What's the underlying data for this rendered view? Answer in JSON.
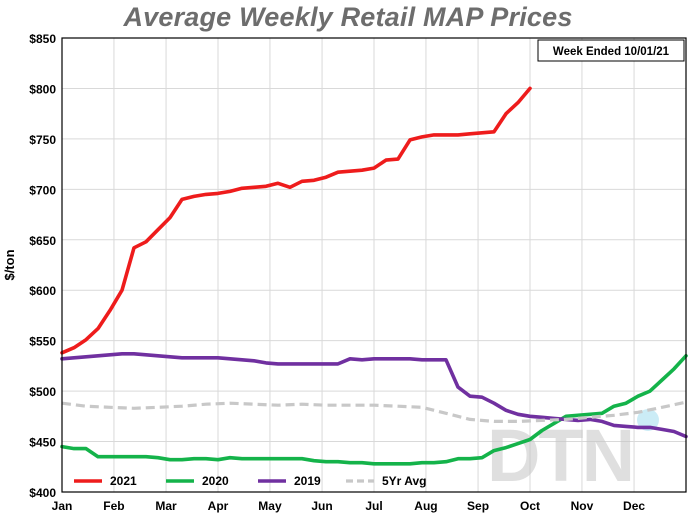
{
  "chart_data": {
    "type": "line",
    "title": "Average Weekly Retail MAP Prices",
    "ylabel": "$/ton",
    "xlabel": "",
    "annotation": "Week Ended 10/01/21",
    "watermark": "DTN",
    "xlim": [
      0,
      52
    ],
    "ylim": [
      400,
      850
    ],
    "y_ticks": [
      400,
      450,
      500,
      550,
      600,
      650,
      700,
      750,
      800,
      850
    ],
    "y_tick_labels": [
      "$400",
      "$450",
      "$500",
      "$550",
      "$600",
      "$650",
      "$700",
      "$750",
      "$800",
      "$850"
    ],
    "month_ticks": [
      0,
      4.33,
      8.67,
      13,
      17.33,
      21.67,
      26,
      30.33,
      34.67,
      39,
      43.33,
      47.67,
      52
    ],
    "month_labels": [
      "Jan",
      "Feb",
      "Mar",
      "Apr",
      "May",
      "Jun",
      "Jul",
      "Aug",
      "Sep",
      "Oct",
      "Nov",
      "Dec"
    ],
    "grid": true,
    "legend_position": "bottom",
    "series": [
      {
        "name": "2021",
        "color": "#ee1c1c",
        "dash": false,
        "x": [
          0,
          1,
          2,
          3,
          4,
          5,
          6,
          7,
          8,
          9,
          10,
          11,
          12,
          13,
          14,
          15,
          16,
          17,
          18,
          19,
          20,
          21,
          22,
          23,
          24,
          25,
          26,
          27,
          28,
          29,
          30,
          31,
          32,
          33,
          34,
          35,
          36,
          37,
          38,
          39
        ],
        "y": [
          538,
          543,
          551,
          562,
          580,
          600,
          642,
          648,
          660,
          672,
          690,
          693,
          695,
          696,
          698,
          701,
          702,
          703,
          706,
          702,
          708,
          709,
          712,
          717,
          718,
          719,
          721,
          729,
          730,
          749,
          752,
          754,
          754,
          754,
          755,
          756,
          757,
          775,
          786,
          800
        ]
      },
      {
        "name": "2020",
        "color": "#14b34a",
        "dash": false,
        "x": [
          0,
          1,
          2,
          3,
          4,
          5,
          6,
          7,
          8,
          9,
          10,
          11,
          12,
          13,
          14,
          15,
          16,
          17,
          18,
          19,
          20,
          21,
          22,
          23,
          24,
          25,
          26,
          27,
          28,
          29,
          30,
          31,
          32,
          33,
          34,
          35,
          36,
          37,
          38,
          39,
          40,
          41,
          42,
          43,
          44,
          45,
          46,
          47,
          48,
          49,
          50,
          51,
          52
        ],
        "y": [
          445,
          443,
          443,
          435,
          435,
          435,
          435,
          435,
          434,
          432,
          432,
          433,
          433,
          432,
          434,
          433,
          433,
          433,
          433,
          433,
          433,
          431,
          430,
          430,
          429,
          429,
          428,
          428,
          428,
          428,
          429,
          429,
          430,
          433,
          433,
          434,
          441,
          444,
          448,
          452,
          461,
          468,
          475,
          476,
          477,
          478,
          485,
          488,
          495,
          500,
          511,
          522,
          535
        ]
      },
      {
        "name": "2019",
        "color": "#7030a0",
        "dash": false,
        "x": [
          0,
          1,
          2,
          3,
          4,
          5,
          6,
          7,
          8,
          9,
          10,
          11,
          12,
          13,
          14,
          15,
          16,
          17,
          18,
          19,
          20,
          21,
          22,
          23,
          24,
          25,
          26,
          27,
          28,
          29,
          30,
          31,
          32,
          33,
          34,
          35,
          36,
          37,
          38,
          39,
          40,
          41,
          42,
          43,
          44,
          45,
          46,
          47,
          48,
          49,
          50,
          51,
          52
        ],
        "y": [
          532,
          533,
          534,
          535,
          536,
          537,
          537,
          536,
          535,
          534,
          533,
          533,
          533,
          533,
          532,
          531,
          530,
          528,
          527,
          527,
          527,
          527,
          527,
          527,
          532,
          531,
          532,
          532,
          532,
          532,
          531,
          531,
          531,
          504,
          495,
          494,
          488,
          481,
          477,
          475,
          474,
          473,
          472,
          471,
          472,
          470,
          466,
          465,
          464,
          464,
          462,
          460,
          455
        ]
      },
      {
        "name": "5Yr Avg",
        "color": "#c8c8c8",
        "dash": true,
        "x": [
          0,
          2,
          4,
          6,
          8,
          10,
          12,
          14,
          16,
          18,
          20,
          22,
          24,
          26,
          28,
          30,
          32,
          34,
          36,
          38,
          40,
          42,
          44,
          46,
          48,
          50,
          52
        ],
        "y": [
          488,
          485,
          484,
          483,
          484,
          485,
          487,
          488,
          487,
          486,
          487,
          486,
          486,
          486,
          485,
          484,
          478,
          472,
          470,
          470,
          471,
          472,
          474,
          476,
          479,
          484,
          489
        ]
      }
    ]
  }
}
